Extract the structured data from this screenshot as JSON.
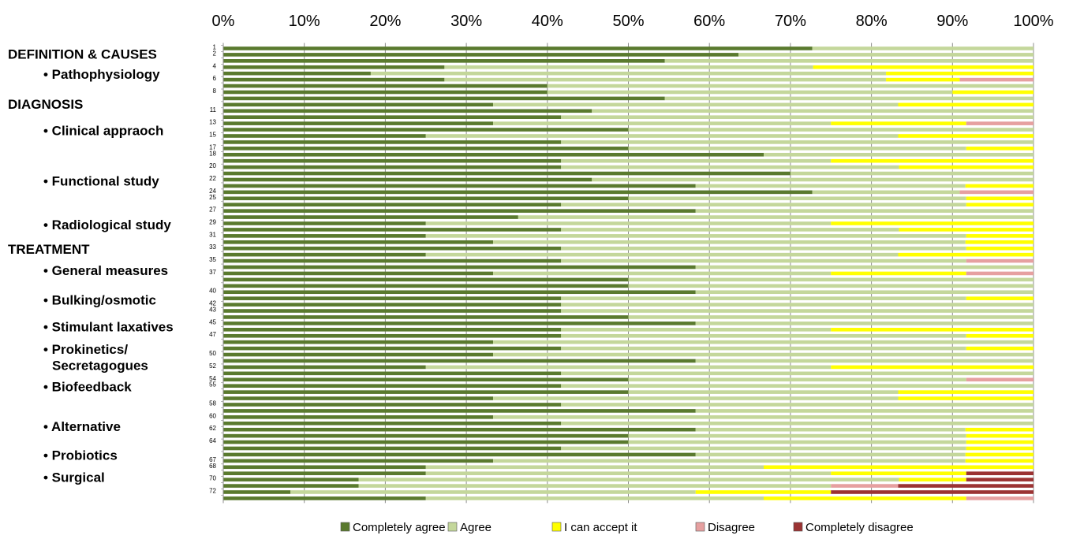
{
  "chart_data": {
    "type": "bar",
    "orientation": "horizontal",
    "stacked": "percent",
    "xlim": [
      0,
      100
    ],
    "xticks": [
      "0%",
      "10%",
      "20%",
      "30%",
      "40%",
      "50%",
      "60%",
      "70%",
      "80%",
      "90%",
      "100%"
    ],
    "row_labels": [
      "1",
      "2",
      "",
      "4",
      "",
      "6",
      "",
      "8",
      "",
      "",
      "11",
      "",
      "13",
      "",
      "15",
      "",
      "17",
      "18",
      "",
      "20",
      "",
      "22",
      "",
      "24",
      "25",
      "",
      "27",
      "",
      "29",
      "",
      "31",
      "",
      "33",
      "",
      "35",
      "",
      "37",
      "",
      "",
      "40",
      "",
      "42",
      "43",
      "",
      "45",
      "",
      "47",
      "",
      "",
      "50",
      "",
      "52",
      "",
      "54",
      "55",
      "",
      "",
      "58",
      "",
      "60",
      "",
      "62",
      "",
      "64",
      "",
      "",
      "67",
      "68",
      "",
      "70",
      "",
      "72",
      ""
    ],
    "group_labels": [
      {
        "text": "DEFINITION & CAUSES",
        "level": 0,
        "row": 1.4
      },
      {
        "text": "• Pathophysiology",
        "level": 1,
        "row": 4.6
      },
      {
        "text": "DIAGNOSIS",
        "level": 0,
        "row": 9.4
      },
      {
        "text": "• Clinical appraoch",
        "level": 1,
        "row": 13.6
      },
      {
        "text": "• Functional study",
        "level": 1,
        "row": 21.7
      },
      {
        "text": "• Radiological study",
        "level": 1,
        "row": 28.7
      },
      {
        "text": "TREATMENT",
        "level": 0,
        "row": 32.6
      },
      {
        "text": "• General measures",
        "level": 1,
        "row": 36.0
      },
      {
        "text": "• Bulking/osmotic",
        "level": 1,
        "row": 40.7
      },
      {
        "text": "• Stimulant laxatives",
        "level": 1,
        "row": 45.0
      },
      {
        "text": "• Prokinetics/",
        "level": 1,
        "row": 48.6
      },
      {
        "text": "Secretagogues",
        "level": 2,
        "row": 51.2
      },
      {
        "text": "• Biofeedback",
        "level": 1,
        "row": 54.6
      },
      {
        "text": "• Alternative",
        "level": 1,
        "row": 61.0
      },
      {
        "text": "• Probiotics",
        "level": 1,
        "row": 65.6
      },
      {
        "text": "• Surgical",
        "level": 1,
        "row": 69.1
      }
    ],
    "series": [
      {
        "name": "Completely agree",
        "color": "#5a7a2e",
        "values": [
          72.7,
          63.6,
          54.5,
          27.3,
          18.2,
          27.3,
          40,
          40,
          54.5,
          33.3,
          45.5,
          41.7,
          33.3,
          50,
          25,
          41.7,
          50,
          66.7,
          41.7,
          41.7,
          70,
          45.5,
          58.3,
          72.7,
          50,
          41.7,
          58.3,
          36.4,
          25,
          41.7,
          25,
          33.3,
          41.7,
          25,
          41.7,
          58.3,
          33.3,
          50,
          50,
          58.3,
          41.7,
          41.7,
          41.7,
          50,
          58.3,
          41.7,
          41.7,
          33.3,
          41.7,
          33.3,
          58.3,
          25,
          41.7,
          50,
          41.7,
          50,
          33.3,
          41.7,
          58.3,
          33.3,
          41.7,
          58.3,
          50,
          50,
          41.7,
          58.3,
          33.3,
          25,
          25,
          16.7,
          16.7,
          8.3,
          25
        ]
      },
      {
        "name": "Agree",
        "color": "#c4d79b",
        "values": [
          27.3,
          36.4,
          45.5,
          45.5,
          63.6,
          54.5,
          60,
          50,
          45.5,
          50,
          54.5,
          58.3,
          41.7,
          50,
          58.3,
          58.3,
          41.7,
          33.3,
          33.3,
          41.7,
          30,
          54.5,
          33.3,
          18.2,
          41.7,
          50,
          41.7,
          63.6,
          50,
          41.7,
          66.7,
          58.3,
          50,
          58.3,
          50,
          41.7,
          41.7,
          50,
          50,
          41.7,
          50,
          58.3,
          58.3,
          50,
          41.7,
          33.3,
          50,
          66.7,
          50,
          66.7,
          41.7,
          50,
          58.3,
          41.7,
          58.3,
          33.3,
          50,
          58.3,
          41.7,
          66.7,
          58.3,
          33.3,
          41.7,
          41.7,
          50,
          33.3,
          58.3,
          41.7,
          50,
          66.7,
          58.3,
          50,
          41.7
        ]
      },
      {
        "name": "I can accept it",
        "color": "#ffff00",
        "values": [
          0,
          0,
          0,
          27.2,
          18.2,
          9.1,
          0,
          10,
          0,
          16.7,
          0,
          0,
          16.7,
          0,
          16.7,
          0,
          8.3,
          0,
          25,
          16.6,
          0,
          0,
          8.4,
          0,
          8.3,
          8.3,
          0,
          0,
          25,
          16.6,
          8.3,
          8.4,
          8.3,
          16.7,
          0,
          0,
          16.7,
          0,
          0,
          0,
          8.3,
          0,
          0,
          0,
          0,
          25,
          8.3,
          0,
          8.3,
          0,
          0,
          25,
          0,
          0,
          0,
          16.7,
          16.7,
          0,
          0,
          0,
          0,
          8.4,
          8.3,
          8.3,
          8.3,
          8.4,
          8.4,
          33.3,
          16.7,
          8.3,
          0,
          16.7,
          25
        ]
      },
      {
        "name": "Disagree",
        "color": "#e6a0a0",
        "values": [
          0,
          0,
          0,
          0,
          0,
          9.1,
          0,
          0,
          0,
          0,
          0,
          0,
          8.3,
          0,
          0,
          0,
          0,
          0,
          0,
          0,
          0,
          0,
          0,
          9.1,
          0,
          0,
          0,
          0,
          0,
          0,
          0,
          0,
          0,
          0,
          8.3,
          0,
          8.3,
          0,
          0,
          0,
          0,
          0,
          0,
          0,
          0,
          0,
          0,
          0,
          0,
          0,
          0,
          0,
          0,
          8.3,
          0,
          0,
          0,
          0,
          0,
          0,
          0,
          0,
          0,
          0,
          0,
          0,
          0,
          0,
          0,
          0,
          8.3,
          0,
          8.3
        ]
      },
      {
        "name": "Completely disagree",
        "color": "#9b3333",
        "values": [
          0,
          0,
          0,
          0,
          0,
          0,
          0,
          0,
          0,
          0,
          0,
          0,
          0,
          0,
          0,
          0,
          0,
          0,
          0,
          0,
          0,
          0,
          0,
          0,
          0,
          0,
          0,
          0,
          0,
          0,
          0,
          0,
          0,
          0,
          0,
          0,
          0,
          0,
          0,
          0,
          0,
          0,
          0,
          0,
          0,
          0,
          0,
          0,
          0,
          0,
          0,
          0,
          0,
          0,
          0,
          0,
          0,
          0,
          0,
          0,
          0,
          0,
          0,
          0,
          0,
          0,
          0,
          0,
          8.3,
          8.3,
          16.7,
          25,
          0
        ]
      }
    ],
    "grid": true,
    "legend_position": "bottom"
  }
}
